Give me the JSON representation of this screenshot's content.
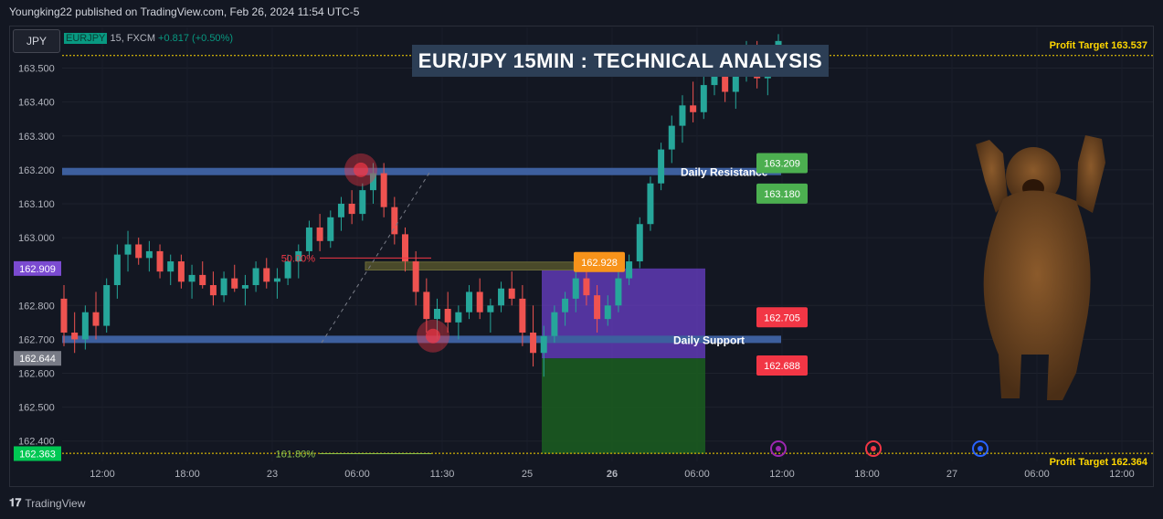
{
  "header": {
    "publisher_line": "Youngking22 published on TradingView.com, Feb 26, 2024 11:54 UTC-5"
  },
  "toolbar": {
    "ticker_button": "JPY"
  },
  "symbol": {
    "name": "EURJPY",
    "interval_source": "15, FXCM",
    "change": "+0.817 (+0.50%)"
  },
  "title": "EUR/JPY 15MIN : TECHNICAL ANALYSIS",
  "footer": {
    "brand": "TradingView"
  },
  "colors": {
    "background": "#131722",
    "up": "#26a69a",
    "down": "#ef5350",
    "zone_line": "#3d5f9e"
  },
  "chart_data": {
    "type": "candlestick",
    "ylim": [
      162.34,
      163.62
    ],
    "y_ticks": [
      "163.500",
      "163.400",
      "163.300",
      "163.200",
      "163.100",
      "163.000",
      "162.800",
      "162.700",
      "162.600",
      "162.500",
      "162.400"
    ],
    "x_ticks": [
      "12:00",
      "18:00",
      "23",
      "06:00",
      "11:30",
      "25",
      "26",
      "06:00",
      "12:00",
      "18:00",
      "27",
      "06:00",
      "12:00"
    ],
    "price_badges": [
      {
        "label": "162.909",
        "value": 162.909,
        "color": "#7b4bd1"
      },
      {
        "label": "162.644",
        "value": 162.644,
        "color": "#787b86"
      },
      {
        "label": "162.363",
        "value": 162.363,
        "color": "#00c853"
      }
    ],
    "levels": [
      {
        "name": "Daily Resistance",
        "value": 163.195,
        "color": "#3d5f9e"
      },
      {
        "name": "Daily Support",
        "value": 162.7,
        "color": "#3d5f9e"
      }
    ],
    "profit_targets": [
      {
        "label": "Profit Target 163.537",
        "value": 163.537
      },
      {
        "label": "Profit Target 162.364",
        "value": 162.364
      }
    ],
    "fib_labels": [
      {
        "label": "50.00%",
        "value": 162.94
      },
      {
        "label": "161.80%",
        "value": 162.363
      }
    ],
    "annotations": [
      {
        "label": "162.928",
        "value": 162.928,
        "color": "#f7931a"
      },
      {
        "label": "163.209",
        "value": 163.22,
        "color": "#4caf50"
      },
      {
        "label": "163.180",
        "value": 163.13,
        "color": "#4caf50"
      },
      {
        "label": "162.705",
        "value": 162.765,
        "color": "#f23645"
      },
      {
        "label": "162.688",
        "value": 162.623,
        "color": "#f23645"
      }
    ],
    "trade_box": {
      "entry": 162.644,
      "stop": 162.909,
      "target": 162.363
    },
    "candles": [
      {
        "o": 162.82,
        "h": 162.86,
        "l": 162.68,
        "c": 162.72
      },
      {
        "o": 162.72,
        "h": 162.78,
        "l": 162.66,
        "c": 162.7
      },
      {
        "o": 162.7,
        "h": 162.8,
        "l": 162.67,
        "c": 162.78
      },
      {
        "o": 162.78,
        "h": 162.84,
        "l": 162.7,
        "c": 162.74
      },
      {
        "o": 162.74,
        "h": 162.88,
        "l": 162.72,
        "c": 162.86
      },
      {
        "o": 162.86,
        "h": 162.98,
        "l": 162.82,
        "c": 162.95
      },
      {
        "o": 162.95,
        "h": 163.02,
        "l": 162.9,
        "c": 162.98
      },
      {
        "o": 162.98,
        "h": 163.0,
        "l": 162.92,
        "c": 162.94
      },
      {
        "o": 162.94,
        "h": 162.99,
        "l": 162.9,
        "c": 162.96
      },
      {
        "o": 162.96,
        "h": 162.98,
        "l": 162.88,
        "c": 162.9
      },
      {
        "o": 162.9,
        "h": 162.95,
        "l": 162.86,
        "c": 162.93
      },
      {
        "o": 162.93,
        "h": 162.95,
        "l": 162.85,
        "c": 162.87
      },
      {
        "o": 162.87,
        "h": 162.92,
        "l": 162.82,
        "c": 162.89
      },
      {
        "o": 162.89,
        "h": 162.93,
        "l": 162.85,
        "c": 162.86
      },
      {
        "o": 162.86,
        "h": 162.9,
        "l": 162.8,
        "c": 162.83
      },
      {
        "o": 162.83,
        "h": 162.9,
        "l": 162.81,
        "c": 162.88
      },
      {
        "o": 162.88,
        "h": 162.92,
        "l": 162.84,
        "c": 162.85
      },
      {
        "o": 162.85,
        "h": 162.89,
        "l": 162.8,
        "c": 162.86
      },
      {
        "o": 162.86,
        "h": 162.93,
        "l": 162.84,
        "c": 162.91
      },
      {
        "o": 162.91,
        "h": 162.94,
        "l": 162.85,
        "c": 162.87
      },
      {
        "o": 162.87,
        "h": 162.91,
        "l": 162.82,
        "c": 162.88
      },
      {
        "o": 162.88,
        "h": 162.95,
        "l": 162.86,
        "c": 162.93
      },
      {
        "o": 162.93,
        "h": 162.98,
        "l": 162.88,
        "c": 162.96
      },
      {
        "o": 162.96,
        "h": 163.05,
        "l": 162.94,
        "c": 163.03
      },
      {
        "o": 163.03,
        "h": 163.07,
        "l": 162.96,
        "c": 162.99
      },
      {
        "o": 162.99,
        "h": 163.08,
        "l": 162.97,
        "c": 163.06
      },
      {
        "o": 163.06,
        "h": 163.12,
        "l": 163.02,
        "c": 163.1
      },
      {
        "o": 163.1,
        "h": 163.14,
        "l": 163.04,
        "c": 163.07
      },
      {
        "o": 163.07,
        "h": 163.16,
        "l": 163.05,
        "c": 163.14
      },
      {
        "o": 163.14,
        "h": 163.22,
        "l": 163.1,
        "c": 163.19
      },
      {
        "o": 163.19,
        "h": 163.22,
        "l": 163.06,
        "c": 163.09
      },
      {
        "o": 163.09,
        "h": 163.12,
        "l": 162.98,
        "c": 163.01
      },
      {
        "o": 163.01,
        "h": 163.03,
        "l": 162.9,
        "c": 162.93
      },
      {
        "o": 162.93,
        "h": 162.96,
        "l": 162.8,
        "c": 162.84
      },
      {
        "o": 162.84,
        "h": 162.88,
        "l": 162.72,
        "c": 162.76
      },
      {
        "o": 162.76,
        "h": 162.82,
        "l": 162.7,
        "c": 162.79
      },
      {
        "o": 162.79,
        "h": 162.84,
        "l": 162.72,
        "c": 162.75
      },
      {
        "o": 162.75,
        "h": 162.8,
        "l": 162.7,
        "c": 162.78
      },
      {
        "o": 162.78,
        "h": 162.86,
        "l": 162.76,
        "c": 162.84
      },
      {
        "o": 162.84,
        "h": 162.88,
        "l": 162.76,
        "c": 162.78
      },
      {
        "o": 162.78,
        "h": 162.82,
        "l": 162.72,
        "c": 162.8
      },
      {
        "o": 162.8,
        "h": 162.87,
        "l": 162.78,
        "c": 162.85
      },
      {
        "o": 162.85,
        "h": 162.9,
        "l": 162.8,
        "c": 162.82
      },
      {
        "o": 162.82,
        "h": 162.86,
        "l": 162.68,
        "c": 162.72
      },
      {
        "o": 162.72,
        "h": 162.8,
        "l": 162.62,
        "c": 162.66
      },
      {
        "o": 162.66,
        "h": 162.74,
        "l": 162.59,
        "c": 162.71
      },
      {
        "o": 162.71,
        "h": 162.8,
        "l": 162.69,
        "c": 162.78
      },
      {
        "o": 162.78,
        "h": 162.84,
        "l": 162.74,
        "c": 162.82
      },
      {
        "o": 162.82,
        "h": 162.9,
        "l": 162.78,
        "c": 162.88
      },
      {
        "o": 162.88,
        "h": 162.91,
        "l": 162.8,
        "c": 162.83
      },
      {
        "o": 162.83,
        "h": 162.86,
        "l": 162.72,
        "c": 162.76
      },
      {
        "o": 162.76,
        "h": 162.83,
        "l": 162.74,
        "c": 162.8
      },
      {
        "o": 162.8,
        "h": 162.9,
        "l": 162.78,
        "c": 162.88
      },
      {
        "o": 162.88,
        "h": 162.95,
        "l": 162.86,
        "c": 162.93
      },
      {
        "o": 162.93,
        "h": 163.06,
        "l": 162.91,
        "c": 163.04
      },
      {
        "o": 163.04,
        "h": 163.18,
        "l": 163.02,
        "c": 163.16
      },
      {
        "o": 163.16,
        "h": 163.28,
        "l": 163.14,
        "c": 163.26
      },
      {
        "o": 163.26,
        "h": 163.36,
        "l": 163.22,
        "c": 163.33
      },
      {
        "o": 163.33,
        "h": 163.42,
        "l": 163.28,
        "c": 163.39
      },
      {
        "o": 163.39,
        "h": 163.46,
        "l": 163.34,
        "c": 163.37
      },
      {
        "o": 163.37,
        "h": 163.48,
        "l": 163.35,
        "c": 163.45
      },
      {
        "o": 163.45,
        "h": 163.55,
        "l": 163.42,
        "c": 163.52
      },
      {
        "o": 163.52,
        "h": 163.56,
        "l": 163.4,
        "c": 163.43
      },
      {
        "o": 163.43,
        "h": 163.52,
        "l": 163.38,
        "c": 163.49
      },
      {
        "o": 163.49,
        "h": 163.58,
        "l": 163.46,
        "c": 163.55
      },
      {
        "o": 163.55,
        "h": 163.58,
        "l": 163.44,
        "c": 163.47
      },
      {
        "o": 163.47,
        "h": 163.56,
        "l": 163.42,
        "c": 163.53
      },
      {
        "o": 163.53,
        "h": 163.6,
        "l": 163.5,
        "c": 163.58
      }
    ]
  }
}
